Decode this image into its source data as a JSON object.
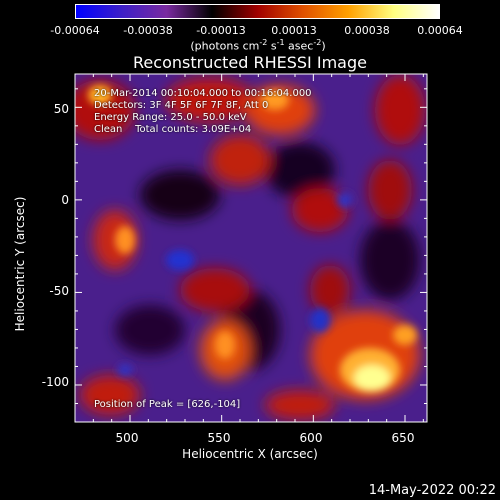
{
  "colorbar": {
    "tick_labels": [
      "-0.00064",
      "-0.00038",
      "-0.00013",
      "0.00013",
      "0.00038",
      "0.00064"
    ],
    "units_prefix": "(photons cm",
    "units_sup1": "-2",
    "units_mid1": " s",
    "units_sup2": "-1",
    "units_mid2": " asec",
    "units_sup3": "-2",
    "units_suffix": ")",
    "colors": [
      "#0000ff",
      "#3c1fc8",
      "#7a2aa0",
      "#000000",
      "#a00000",
      "#e05000",
      "#ffa000",
      "#ffff80",
      "#ffffff"
    ]
  },
  "title": "Reconstructed RHESSI Image",
  "info": {
    "time_range": "20-Mar-2014 00:10:04.000 to 00:16:04.000",
    "detectors": "Detectors: 3F 4F 5F 6F 7F 8F, Att 0",
    "energy_range": "Energy Range: 25.0 - 50.0 keV",
    "clean_counts": "Clean    Total counts: 3.09E+04",
    "peak_position": "Position of Peak = [626,-104]"
  },
  "axes": {
    "xlabel": "Heliocentric X (arcsec)",
    "ylabel": "Heliocentric Y (arcsec)",
    "x_ticks": [
      "500",
      "550",
      "600",
      "650"
    ],
    "y_ticks": [
      "50",
      "0",
      "-50",
      "-100"
    ],
    "x_range": [
      470,
      662
    ],
    "y_range": [
      -120,
      68
    ]
  },
  "timestamp": "14-May-2022 00:22"
}
